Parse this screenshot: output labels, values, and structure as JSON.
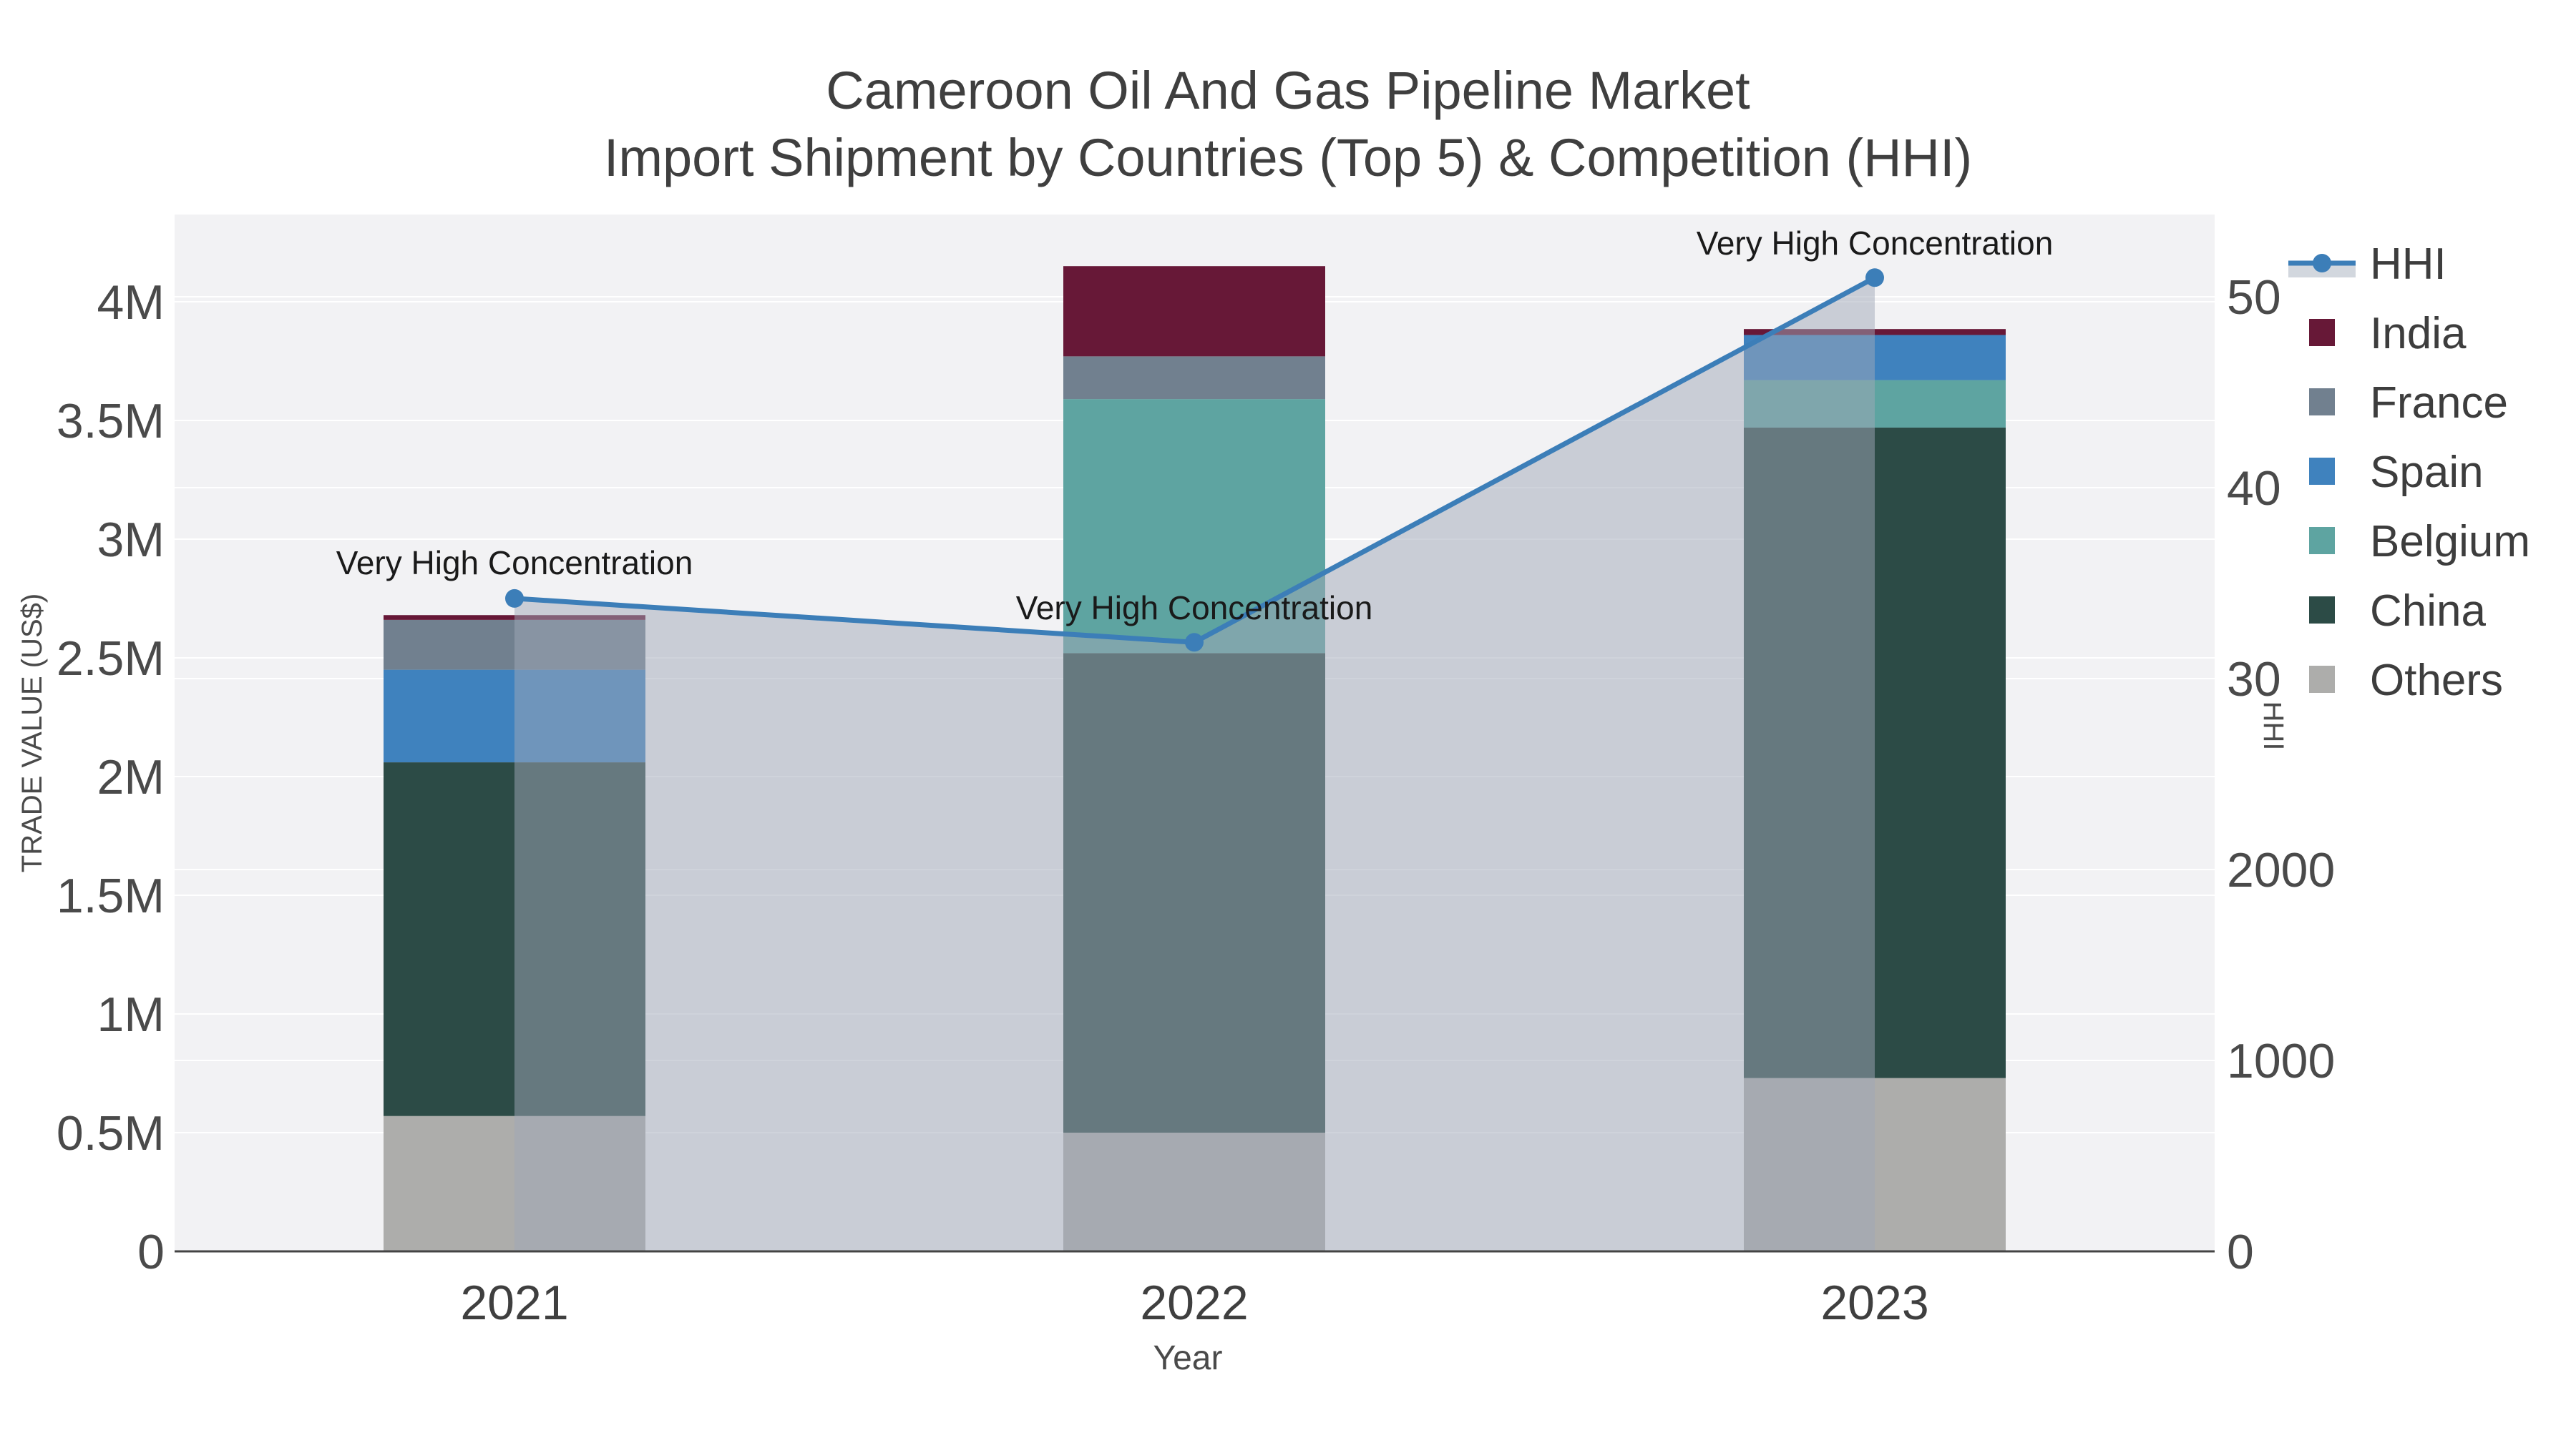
{
  "title": {
    "line1": "Cameroon Oil And Gas Pipeline Market",
    "line2": "Import Shipment by Countries (Top 5) & Competition (HHI)"
  },
  "chart_data": {
    "type": "bar",
    "subtype": "stacked-bars-with-secondary-line",
    "categories": [
      "2021",
      "2022",
      "2023"
    ],
    "series": [
      {
        "name": "India",
        "color": "#671837",
        "values": [
          20000,
          380000,
          25000
        ]
      },
      {
        "name": "France",
        "color": "#71808F",
        "values": [
          210000,
          180000,
          0
        ]
      },
      {
        "name": "Spain",
        "color": "#3F82BE",
        "values": [
          390000,
          0,
          190000
        ]
      },
      {
        "name": "Belgium",
        "color": "#5EA4A1",
        "values": [
          0,
          1070000,
          200000
        ]
      },
      {
        "name": "China",
        "color": "#2C4B46",
        "values": [
          1490000,
          2020000,
          2740000
        ]
      },
      {
        "name": "Others",
        "color": "#ADADAB",
        "values": [
          570000,
          500000,
          730000
        ]
      }
    ],
    "stack_order_bottom_to_top": [
      "Others",
      "China",
      "Belgium",
      "Spain",
      "France",
      "India"
    ],
    "bar_totals": [
      2680000,
      4150000,
      3885000
    ],
    "hhi_series": {
      "name": "HHI",
      "values": [
        3420,
        3190,
        5100
      ],
      "line_color": "#3C7EB8",
      "area_color": "rgba(160,168,184,0.5)",
      "legend_band_color": "#D2D7DE"
    },
    "annotations": [
      {
        "text": "Very High Concentration",
        "category": "2021"
      },
      {
        "text": "Very High Concentration",
        "category": "2022"
      },
      {
        "text": "Very High Concentration",
        "category": "2023"
      }
    ],
    "axes": {
      "left": {
        "title": "TRADE VALUE (US$)",
        "ticks": [
          "0",
          "0.5M",
          "1M",
          "1.5M",
          "2M",
          "2.5M",
          "3M",
          "3.5M",
          "4M"
        ],
        "tick_values": [
          0,
          500000,
          1000000,
          1500000,
          2000000,
          2500000,
          3000000,
          3500000,
          4000000
        ],
        "range": [
          0,
          4370000
        ]
      },
      "right": {
        "title": "HHI",
        "ticks": [
          "0",
          "1000",
          "2000",
          "3000",
          "4000",
          "5000"
        ],
        "tick_values": [
          0,
          1000,
          2000,
          3000,
          4000,
          5000
        ],
        "range": [
          0,
          5430
        ]
      },
      "x": {
        "title": "Year",
        "labels": [
          "2021",
          "2022",
          "2023"
        ]
      }
    },
    "legend": {
      "position": "right",
      "items": [
        "HHI",
        "India",
        "France",
        "Spain",
        "Belgium",
        "China",
        "Others"
      ]
    },
    "style": {
      "plot_background": "#F2F2F4",
      "grid_color": "#FFFFFF",
      "axis_line_color": "#444444",
      "title_color": "#3F3F3F",
      "grid": "on"
    }
  }
}
